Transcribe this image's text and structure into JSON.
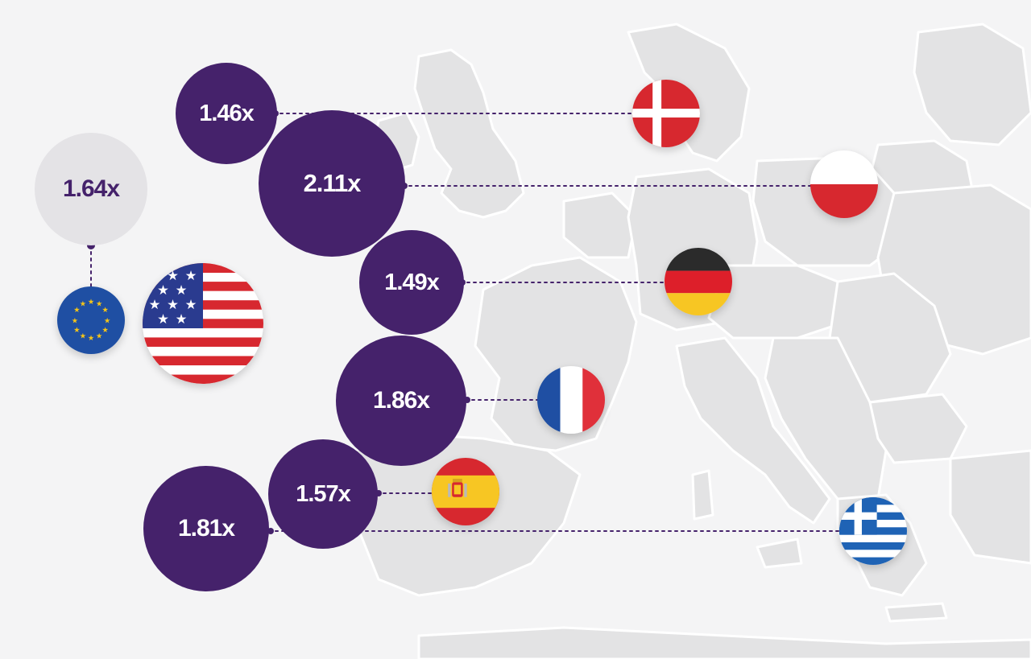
{
  "colors": {
    "background": "#f4f4f5",
    "land": "#e3e3e4",
    "borders": "#ffffff",
    "bubble_dark": "#45226b",
    "bubble_light": "#e4e3e6",
    "connector": "#45226b"
  },
  "reference": {
    "value": "1.64x",
    "region_icon": "eu-flag-icon"
  },
  "comparison_icon": "us-flag-icon",
  "countries": [
    {
      "id": "denmark",
      "value": "1.46x",
      "flag_icon": "denmark-flag-icon"
    },
    {
      "id": "poland",
      "value": "2.11x",
      "flag_icon": "poland-flag-icon"
    },
    {
      "id": "germany",
      "value": "1.49x",
      "flag_icon": "germany-flag-icon"
    },
    {
      "id": "france",
      "value": "1.86x",
      "flag_icon": "france-flag-icon"
    },
    {
      "id": "spain",
      "value": "1.57x",
      "flag_icon": "spain-flag-icon"
    },
    {
      "id": "greece",
      "value": "1.81x",
      "flag_icon": "greece-flag-icon"
    }
  ]
}
